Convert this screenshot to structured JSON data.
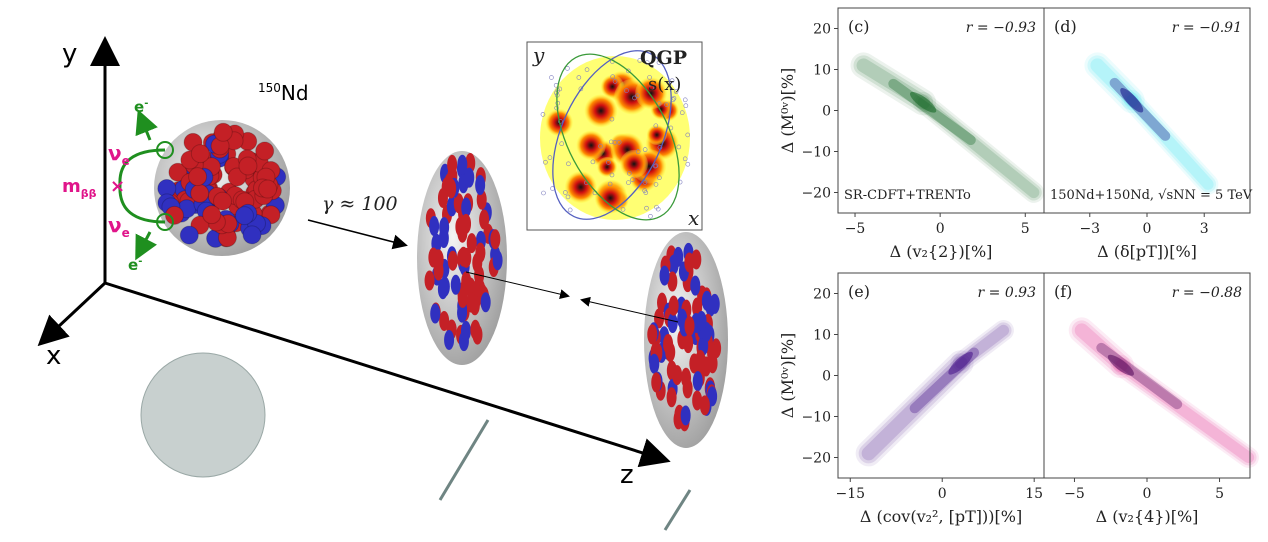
{
  "illustration": {
    "axis_y": "y",
    "axis_x": "x",
    "axis_z": "z",
    "nucleus_label_mass": "150",
    "nucleus_label_element": "Nd",
    "neutrino_top": "ν",
    "neutrino_bottom": "ν",
    "neutrino_sub": "e",
    "electron_top": "e",
    "electron_bottom": "e",
    "electron_sup": "-",
    "mass_label": "m",
    "mass_sub": "ββ",
    "mass_mark": "×",
    "gamma_label": "γ ≈ 100",
    "inset": {
      "y_label": "y",
      "x_label": "x",
      "title": "QGP",
      "entropy_label": "s(x)"
    },
    "colors": {
      "proton": "#c42026",
      "neutron": "#3030c0",
      "neutrino": "#1f8f1f",
      "mass": "#e0158a"
    }
  },
  "chart_data": [
    {
      "type": "heatmap",
      "panel": "(c)",
      "annotation": "r = −0.93",
      "note": "SR-CDFT+TRENTo",
      "xlabel": "Δ (v₂{2})[%]",
      "ylabel": "Δ (M⁰ᵛ)[%]",
      "xticks": [
        "−5",
        "0",
        "5"
      ],
      "xtick_values": [
        -5,
        0,
        5
      ],
      "yticks": [
        "20",
        "10",
        "0",
        "−10",
        "−20"
      ],
      "ytick_values": [
        20,
        10,
        0,
        -10,
        -20
      ],
      "xlim": [
        -6,
        6.1
      ],
      "ylim": [
        -25,
        25
      ],
      "color": "#1a6b2a",
      "density": {
        "from": [
          -4.5,
          11
        ],
        "peak": [
          -1,
          2
        ],
        "to": [
          5.5,
          -20
        ]
      }
    },
    {
      "type": "heatmap",
      "panel": "(d)",
      "annotation": "r = −0.91",
      "note": "150Nd+150Nd, √sNN = 5 TeV",
      "xlabel": "Δ (δ[pT])[%]",
      "xticks": [
        "−3",
        "0",
        "3"
      ],
      "xtick_values": [
        -3,
        0,
        3
      ],
      "xlim": [
        -5.4,
        5.4
      ],
      "ylim": [
        -25,
        25
      ],
      "color": "#1a1a8c",
      "edge_color": "#22e0f0",
      "density": {
        "from": [
          -2.6,
          11
        ],
        "peak": [
          -0.8,
          2.5
        ],
        "to": [
          3.2,
          -18
        ]
      }
    },
    {
      "type": "heatmap",
      "panel": "(e)",
      "annotation": "r = 0.93",
      "xlabel": "Δ (cov(v₂², [pT]))[%]",
      "ylabel": "Δ (M⁰ᵛ)[%]",
      "xticks": [
        "−15",
        "0",
        "15"
      ],
      "xtick_values": [
        -15,
        0,
        15
      ],
      "yticks": [
        "20",
        "10",
        "0",
        "−10",
        "−20"
      ],
      "ytick_values": [
        20,
        10,
        0,
        -10,
        -20
      ],
      "xlim": [
        -17,
        16.6
      ],
      "ylim": [
        -25,
        25
      ],
      "color": "#4b1a8c",
      "density": {
        "from": [
          -12,
          -19
        ],
        "peak": [
          3,
          3
        ],
        "to": [
          10,
          11
        ]
      }
    },
    {
      "type": "heatmap",
      "panel": "(f)",
      "annotation": "r = −0.88",
      "xlabel": "Δ (v₂{4})[%]",
      "xticks": [
        "−5",
        "0",
        "5"
      ],
      "xtick_values": [
        -5,
        0,
        5
      ],
      "xlim": [
        -7.1,
        7.1
      ],
      "ylim": [
        -25,
        25
      ],
      "color": "#5a1060",
      "edge_color": "#e0208a",
      "density": {
        "from": [
          -4.5,
          11
        ],
        "peak": [
          -1.8,
          2.5
        ],
        "to": [
          7,
          -20
        ]
      }
    }
  ]
}
